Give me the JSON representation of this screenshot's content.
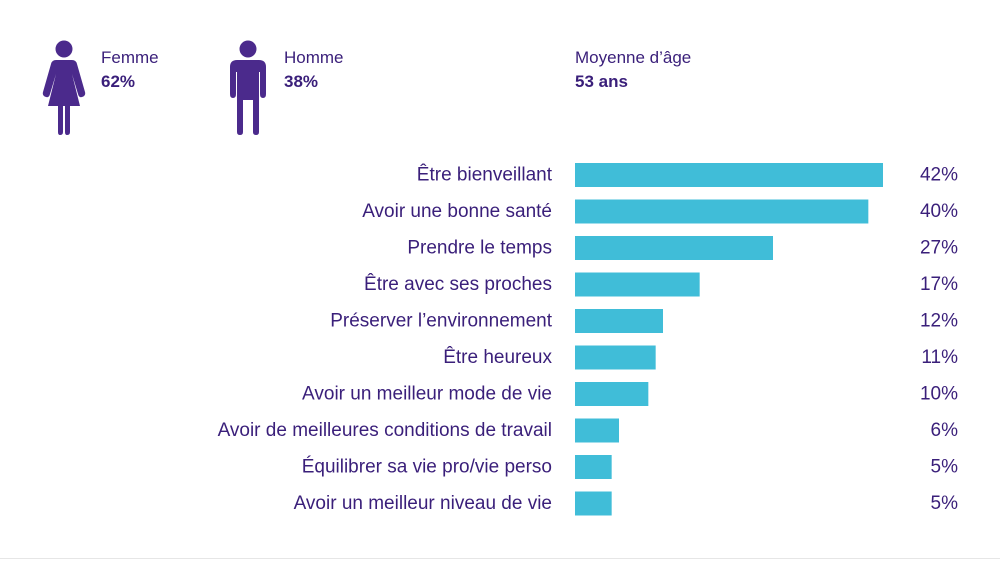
{
  "colors": {
    "text": "#3a1f7a",
    "icon": "#4b2a8c",
    "bar": "#40bdd8"
  },
  "demographics": {
    "female": {
      "icon": "female-person-icon",
      "label": "Femme",
      "value": "62%"
    },
    "male": {
      "icon": "male-person-icon",
      "label": "Homme",
      "value": "38%"
    },
    "age": {
      "label": "Moyenne d’âge",
      "value": "53 ans"
    }
  },
  "chart_data": {
    "type": "bar",
    "orientation": "horizontal",
    "categories": [
      "Être bienveillant",
      "Avoir une bonne santé",
      "Prendre le temps",
      "Être avec ses proches",
      "Préserver l’environnement",
      "Être heureux",
      "Avoir un meilleur mode de vie",
      "Avoir de meilleures conditions de travail",
      "Équilibrer sa vie pro/vie perso",
      "Avoir un meilleur niveau de vie"
    ],
    "values": [
      42,
      40,
      27,
      17,
      12,
      11,
      10,
      6,
      5,
      5
    ],
    "value_labels": [
      "42%",
      "40%",
      "27%",
      "17%",
      "12%",
      "11%",
      "10%",
      "6%",
      "5%",
      "5%"
    ],
    "xlim": [
      0,
      42
    ],
    "grid": false,
    "legend": "none"
  }
}
